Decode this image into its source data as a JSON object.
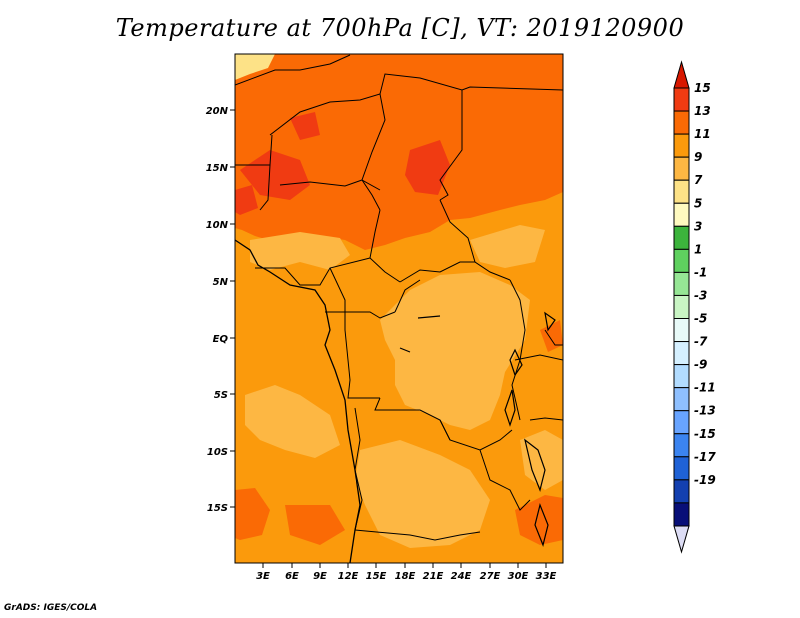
{
  "title": "Temperature at 700hPa [C], VT: 2019120900",
  "footer": "GrADS: IGES/COLA",
  "map": {
    "lat_labels": [
      "20N",
      "15N",
      "10N",
      "5N",
      "EQ",
      "5S",
      "10S",
      "15S"
    ],
    "lon_labels": [
      "3E",
      "6E",
      "9E",
      "12E",
      "15E",
      "18E",
      "21E",
      "24E",
      "27E",
      "30E",
      "33E"
    ],
    "fill_colors": {
      "13-15": "#f03b12",
      "11-13": "#fa6a05",
      "9-11": "#fb9a0c",
      "7-9": "#fdb743",
      "5-7": "#fde287"
    }
  },
  "colorbar": {
    "labels": [
      "15",
      "13",
      "11",
      "9",
      "7",
      "5",
      "3",
      "1",
      "-1",
      "-3",
      "-5",
      "-7",
      "-9",
      "-11",
      "-13",
      "-15",
      "-17",
      "-19"
    ],
    "colors": [
      "#d81800",
      "#f03b12",
      "#fa6a05",
      "#fb9a0c",
      "#fdb743",
      "#fde287",
      "#fffac0",
      "#3cb43c",
      "#5fd15f",
      "#96e695",
      "#c9f5c4",
      "#e8faf8",
      "#d5f0ff",
      "#b2dcff",
      "#8fc0ff",
      "#68a4ff",
      "#3b84f0",
      "#1f62d6",
      "#1340b0",
      "#080f78",
      "#ddddf5"
    ]
  }
}
